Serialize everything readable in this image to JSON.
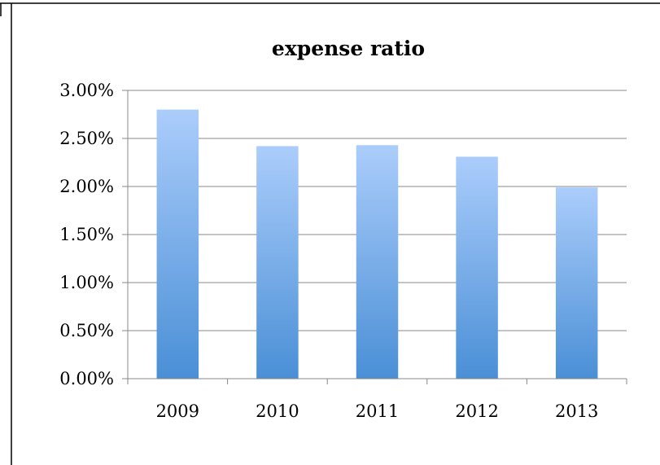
{
  "chart_data": {
    "type": "bar",
    "title": "expense ratio",
    "xlabel": "",
    "ylabel": "",
    "categories": [
      "2009",
      "2010",
      "2011",
      "2012",
      "2013"
    ],
    "values": [
      0.028,
      0.0242,
      0.0243,
      0.0231,
      0.0199
    ],
    "y_ticks": [
      0,
      0.005,
      0.01,
      0.015,
      0.02,
      0.025,
      0.03
    ],
    "y_tick_labels": [
      "0.00%",
      "0.50%",
      "1.00%",
      "1.50%",
      "2.00%",
      "2.50%",
      "3.00%"
    ],
    "ylim": [
      0,
      0.03
    ],
    "grid": true,
    "legend": "none",
    "colors": {
      "bar_top": "#abcdfb",
      "bar_bottom": "#4a8fd6",
      "grid": "#888888",
      "axis": "#888888",
      "frame": "#000000"
    }
  }
}
